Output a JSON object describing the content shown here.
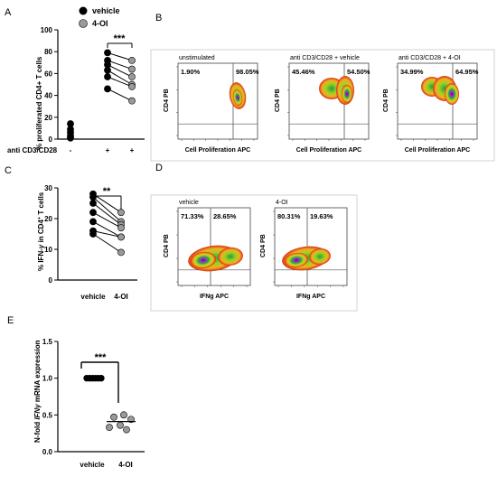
{
  "panels": {
    "A": "A",
    "B": "B",
    "C": "C",
    "D": "D",
    "E": "E"
  },
  "legend": [
    {
      "label": "vehicle",
      "color": "#000000"
    },
    {
      "label": "4-OI",
      "color": "#9a9a9a"
    }
  ],
  "chart_data": [
    {
      "id": "A",
      "type": "scatter",
      "ylabel": "% proliferated CD4+ T cells",
      "ylim": [
        0,
        100
      ],
      "yticks": [
        0,
        20,
        40,
        60,
        80,
        100
      ],
      "row_label": "anti CD3/CD28",
      "categories": [
        "-",
        "+",
        "+"
      ],
      "series": [
        {
          "name": "vehicle",
          "color": "#000000",
          "values": [
            [
              0,
              14
            ],
            [
              0,
              9
            ],
            [
              0,
              6
            ],
            [
              0,
              3
            ],
            [
              0,
              1
            ],
            [
              1,
              79
            ],
            [
              1,
              72
            ],
            [
              1,
              68
            ],
            [
              1,
              63
            ],
            [
              1,
              57
            ],
            [
              1,
              46
            ]
          ]
        },
        {
          "name": "4-OI",
          "color": "#9a9a9a",
          "values": [
            [
              2,
              72
            ],
            [
              2,
              64
            ],
            [
              2,
              57
            ],
            [
              2,
              50
            ],
            [
              2,
              48
            ],
            [
              2,
              35
            ]
          ]
        }
      ],
      "pairs": [
        [
          79,
          72
        ],
        [
          72,
          64
        ],
        [
          68,
          57
        ],
        [
          63,
          50
        ],
        [
          57,
          48
        ],
        [
          46,
          35
        ]
      ],
      "significance": "***"
    },
    {
      "id": "C",
      "type": "scatter",
      "ylabel_parts": [
        "% IFN-",
        "γ",
        " in CD4",
        "+",
        " T cells"
      ],
      "ylim": [
        0,
        30
      ],
      "yticks": [
        0,
        10,
        20,
        30
      ],
      "categories": [
        "vehicle",
        "4-OI"
      ],
      "pairs": [
        [
          28,
          22
        ],
        [
          27,
          19
        ],
        [
          25,
          18
        ],
        [
          22,
          17
        ],
        [
          19,
          14
        ],
        [
          16,
          14
        ],
        [
          15,
          9
        ]
      ],
      "colors": [
        "#000000",
        "#9a9a9a"
      ],
      "significance": "**"
    },
    {
      "id": "E",
      "type": "scatter",
      "ylabel_parts": [
        "N-fold ",
        "IFN",
        "γ",
        " mRNA expression"
      ],
      "ylim": [
        0,
        1.5
      ],
      "yticks": [
        0.0,
        0.5,
        1.0,
        1.5
      ],
      "tick_labels": [
        "0.0",
        "0.5",
        "1.0",
        "1.5"
      ],
      "categories": [
        "vehicle",
        "4-OI"
      ],
      "vehicle": [
        1,
        1,
        1,
        1,
        1,
        1
      ],
      "oi": [
        0.5,
        0.47,
        0.44,
        0.36,
        0.33,
        0.3
      ],
      "oi_mean": 0.41,
      "colors": [
        "#000000",
        "#9a9a9a"
      ],
      "significance": "***"
    }
  ],
  "flow_B": {
    "plots": [
      {
        "title": "unstimulated",
        "left_pct": "1.90%",
        "right_pct": "98.05%"
      },
      {
        "title": "anti CD3/CD28 + vehicle",
        "left_pct": "45.46%",
        "right_pct": "54.50%"
      },
      {
        "title": "anti CD3/CD28 + 4-OI",
        "left_pct": "34.99%",
        "right_pct": "64.95%"
      }
    ],
    "xlabel": "Cell Proliferation APC",
    "ylabel": "CD4 PB"
  },
  "flow_D": {
    "plots": [
      {
        "title": "vehicle",
        "left_pct": "71.33%",
        "right_pct": "28.65%"
      },
      {
        "title": "4-OI",
        "left_pct": "80.31%",
        "right_pct": "19.63%"
      }
    ],
    "xlabel": "IFNg APC",
    "ylabel": "CD4 PB"
  }
}
